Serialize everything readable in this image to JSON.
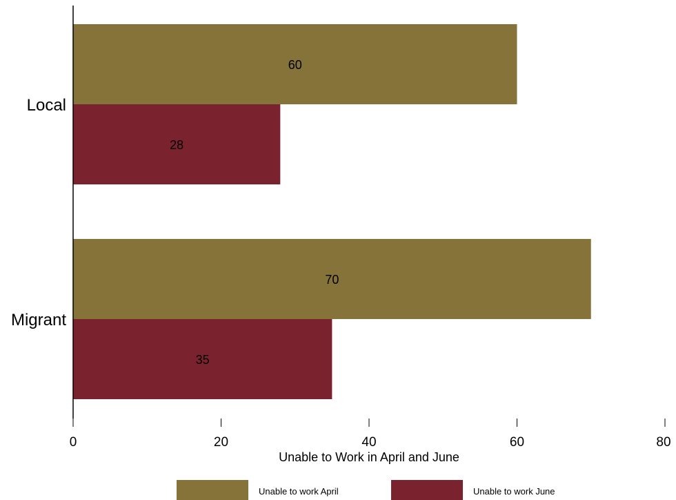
{
  "chart_data": {
    "type": "bar",
    "orientation": "horizontal",
    "categories": [
      "Local",
      "Migrant"
    ],
    "series": [
      {
        "name": "Unable to work April",
        "values": [
          60,
          70
        ],
        "color": "#85733A"
      },
      {
        "name": "Unable to work June",
        "values": [
          28,
          35
        ],
        "color": "#7A232E"
      }
    ],
    "xlabel": "Unable to Work in April and June",
    "ylabel": "",
    "xlim": [
      0,
      80
    ],
    "xticks": [
      0,
      20,
      40,
      60,
      80
    ],
    "grid": false,
    "legend_position": "bottom",
    "data_labels": true
  }
}
